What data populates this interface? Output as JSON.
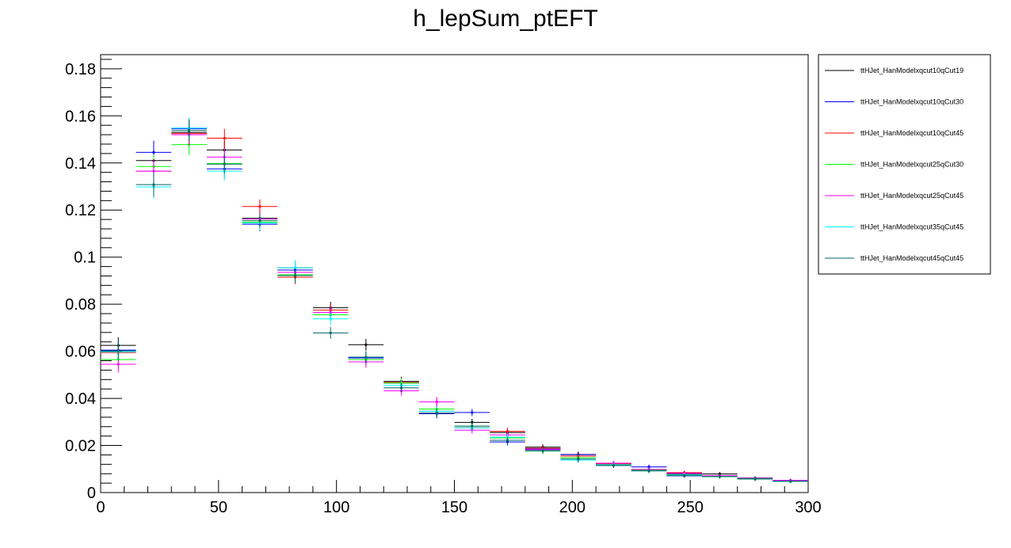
{
  "chart_data": {
    "type": "scatter",
    "title": "h_lepSum_ptEFT",
    "xlabel": "",
    "ylabel": "",
    "xlim": [
      0,
      300
    ],
    "ylim": [
      0,
      0.186
    ],
    "x_ticks": [
      0,
      50,
      100,
      150,
      200,
      250,
      300
    ],
    "x_tick_labels": [
      "0",
      "50",
      "100",
      "150",
      "200",
      "250",
      "300"
    ],
    "y_ticks": [
      0,
      0.02,
      0.04,
      0.06,
      0.08,
      0.1,
      0.12,
      0.14,
      0.16,
      0.18
    ],
    "y_tick_labels": [
      "0",
      "0.02",
      "0.04",
      "0.06",
      "0.08",
      "0.1",
      "0.12",
      "0.14",
      "0.16",
      "0.18"
    ],
    "grid": false,
    "legend_position": "right",
    "bin_width": 15,
    "x": [
      7.5,
      22.5,
      37.5,
      52.5,
      67.5,
      82.5,
      97.5,
      112.5,
      127.5,
      142.5,
      157.5,
      172.5,
      187.5,
      202.5,
      217.5,
      232.5,
      247.5,
      262.5,
      277.5,
      292.5
    ],
    "series": [
      {
        "name": "ttHJet_HanModelxqcut10qCut19",
        "color": "#000000",
        "values": [
          0.0625,
          0.141,
          0.153,
          0.1455,
          0.1165,
          0.0955,
          0.0785,
          0.0628,
          0.0472,
          0.0345,
          0.0298,
          0.0255,
          0.0193,
          0.0162,
          0.0122,
          0.0098,
          0.0078,
          0.0079,
          0.0058,
          0.0049
        ],
        "errors": [
          0.0035,
          0.005,
          0.0045,
          0.004,
          0.003,
          0.003,
          0.0025,
          0.0025,
          0.002,
          0.002,
          0.0015,
          0.0015,
          0.0012,
          0.0012,
          0.001,
          0.001,
          0.0008,
          0.0008,
          0.0008,
          0.0007
        ]
      },
      {
        "name": "ttHJet_HanModelxqcut10qCut30",
        "color": "#0000ff",
        "values": [
          0.0605,
          0.1445,
          0.1545,
          0.1375,
          0.114,
          0.0945,
          0.0755,
          0.0572,
          0.0465,
          0.0335,
          0.034,
          0.0215,
          0.0185,
          0.0161,
          0.0115,
          0.0109,
          0.0071,
          0.0068,
          0.0062,
          0.0048
        ],
        "errors": [
          0.0035,
          0.005,
          0.0045,
          0.004,
          0.003,
          0.003,
          0.0025,
          0.0025,
          0.002,
          0.002,
          0.0015,
          0.0015,
          0.0012,
          0.0012,
          0.001,
          0.001,
          0.0008,
          0.0008,
          0.0008,
          0.0007
        ]
      },
      {
        "name": "ttHJet_HanModelxqcut10qCut45",
        "color": "#ff0000",
        "values": [
          0.0595,
          0.1365,
          0.1525,
          0.1505,
          0.1215,
          0.0915,
          0.0775,
          0.0565,
          0.0468,
          0.0385,
          0.0275,
          0.026,
          0.0188,
          0.0155,
          0.0122,
          0.0098,
          0.0085,
          0.007,
          0.006,
          0.0052
        ],
        "errors": [
          0.0035,
          0.005,
          0.0045,
          0.004,
          0.003,
          0.003,
          0.0025,
          0.0025,
          0.002,
          0.002,
          0.0015,
          0.0015,
          0.0012,
          0.0012,
          0.001,
          0.001,
          0.0008,
          0.0008,
          0.0008,
          0.0007
        ]
      },
      {
        "name": "ttHJet_HanModelxqcut25qCut30",
        "color": "#00ff00",
        "values": [
          0.0565,
          0.1385,
          0.1478,
          0.1398,
          0.1148,
          0.0925,
          0.0755,
          0.0565,
          0.0465,
          0.0355,
          0.0282,
          0.0232,
          0.0176,
          0.0148,
          0.0118,
          0.0095,
          0.0074,
          0.0068,
          0.0058,
          0.0047
        ],
        "errors": [
          0.0035,
          0.005,
          0.0045,
          0.004,
          0.003,
          0.003,
          0.0025,
          0.0025,
          0.002,
          0.002,
          0.0015,
          0.0015,
          0.0012,
          0.0012,
          0.001,
          0.001,
          0.0008,
          0.0008,
          0.0008,
          0.0007
        ]
      },
      {
        "name": "ttHJet_HanModelxqcut25qCut45",
        "color": "#ff00ff",
        "values": [
          0.0545,
          0.1365,
          0.152,
          0.1425,
          0.1162,
          0.0935,
          0.0765,
          0.0555,
          0.0432,
          0.0385,
          0.0265,
          0.0245,
          0.0182,
          0.0138,
          0.0125,
          0.0098,
          0.0082,
          0.0072,
          0.0057,
          0.0052
        ],
        "errors": [
          0.0035,
          0.005,
          0.0045,
          0.004,
          0.003,
          0.003,
          0.0025,
          0.0025,
          0.002,
          0.002,
          0.0015,
          0.0015,
          0.0012,
          0.0012,
          0.001,
          0.001,
          0.0008,
          0.0008,
          0.0008,
          0.0007
        ]
      },
      {
        "name": "ttHJet_HanModelxqcut35qCut45",
        "color": "#00ffff",
        "values": [
          0.0598,
          0.1298,
          0.1548,
          0.1365,
          0.1145,
          0.0955,
          0.0738,
          0.0575,
          0.0455,
          0.0345,
          0.0275,
          0.0235,
          0.0178,
          0.0138,
          0.0118,
          0.0092,
          0.0075,
          0.0068,
          0.0058,
          0.0048
        ],
        "errors": [
          0.0035,
          0.005,
          0.0045,
          0.004,
          0.003,
          0.003,
          0.0025,
          0.0025,
          0.002,
          0.002,
          0.0015,
          0.0015,
          0.0012,
          0.0012,
          0.001,
          0.001,
          0.0008,
          0.0008,
          0.0008,
          0.0007
        ]
      },
      {
        "name": "ttHJet_HanModelxqcut45qCut45",
        "color": "#006666",
        "values": [
          0.0602,
          0.1308,
          0.1538,
          0.1395,
          0.1155,
          0.0922,
          0.0678,
          0.0575,
          0.0445,
          0.0338,
          0.0282,
          0.0222,
          0.0178,
          0.0142,
          0.0115,
          0.0092,
          0.0072,
          0.0068,
          0.0057,
          0.0048
        ],
        "errors": [
          0.0035,
          0.005,
          0.0045,
          0.004,
          0.003,
          0.003,
          0.0025,
          0.0025,
          0.002,
          0.002,
          0.0015,
          0.0015,
          0.0012,
          0.0012,
          0.001,
          0.001,
          0.0008,
          0.0008,
          0.0008,
          0.0007
        ]
      }
    ]
  }
}
